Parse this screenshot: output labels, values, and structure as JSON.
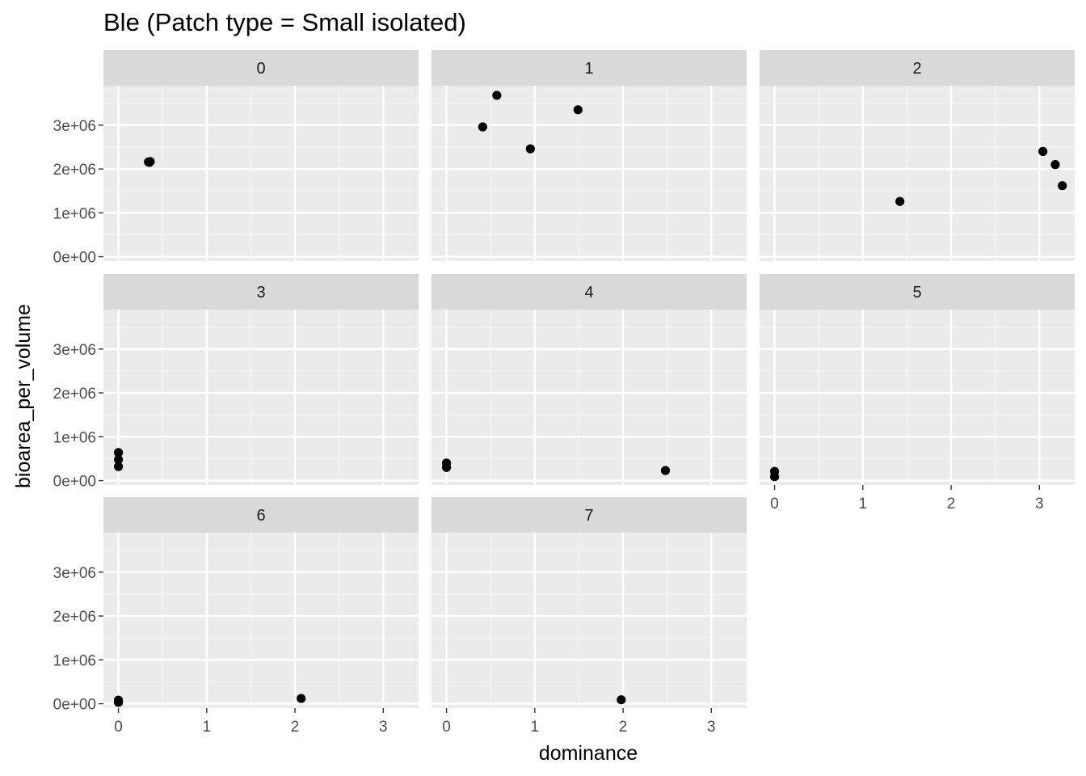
{
  "chart_data": {
    "type": "scatter",
    "title": "Ble (Patch type = Small isolated)",
    "xlabel": "dominance",
    "ylabel": "bioarea_per_volume",
    "xlim": [
      -0.17,
      3.4
    ],
    "ylim": [
      -100000,
      3900000
    ],
    "x_ticks": [
      0,
      1,
      2,
      3
    ],
    "x_tick_labels": [
      "0",
      "1",
      "2",
      "3"
    ],
    "y_ticks": [
      0,
      1000000,
      2000000,
      3000000
    ],
    "y_tick_labels": [
      "0e+00",
      "1e+06",
      "2e+06",
      "3e+06"
    ],
    "grid": true,
    "layout": "facet_wrap 3 columns",
    "panels": [
      {
        "label": "0",
        "points": [
          [
            0.34,
            2160000
          ],
          [
            0.35,
            2150000
          ],
          [
            0.36,
            2170000
          ]
        ]
      },
      {
        "label": "1",
        "points": [
          [
            0.41,
            2960000
          ],
          [
            0.57,
            3680000
          ],
          [
            0.95,
            2460000
          ],
          [
            1.49,
            3350000
          ]
        ]
      },
      {
        "label": "2",
        "points": [
          [
            1.42,
            1260000
          ],
          [
            3.04,
            2400000
          ],
          [
            3.18,
            2100000
          ],
          [
            3.26,
            1620000
          ]
        ]
      },
      {
        "label": "3",
        "points": [
          [
            0.0,
            640000
          ],
          [
            0.0,
            480000
          ],
          [
            0.0,
            320000
          ]
        ]
      },
      {
        "label": "4",
        "points": [
          [
            0.0,
            400000
          ],
          [
            0.0,
            300000
          ],
          [
            2.48,
            230000
          ]
        ]
      },
      {
        "label": "5",
        "points": [
          [
            0.0,
            210000
          ],
          [
            0.0,
            90000
          ]
        ]
      },
      {
        "label": "6",
        "points": [
          [
            0.0,
            80000
          ],
          [
            0.0,
            30000
          ],
          [
            2.07,
            120000
          ]
        ]
      },
      {
        "label": "7",
        "points": [
          [
            1.98,
            90000
          ]
        ]
      }
    ]
  }
}
